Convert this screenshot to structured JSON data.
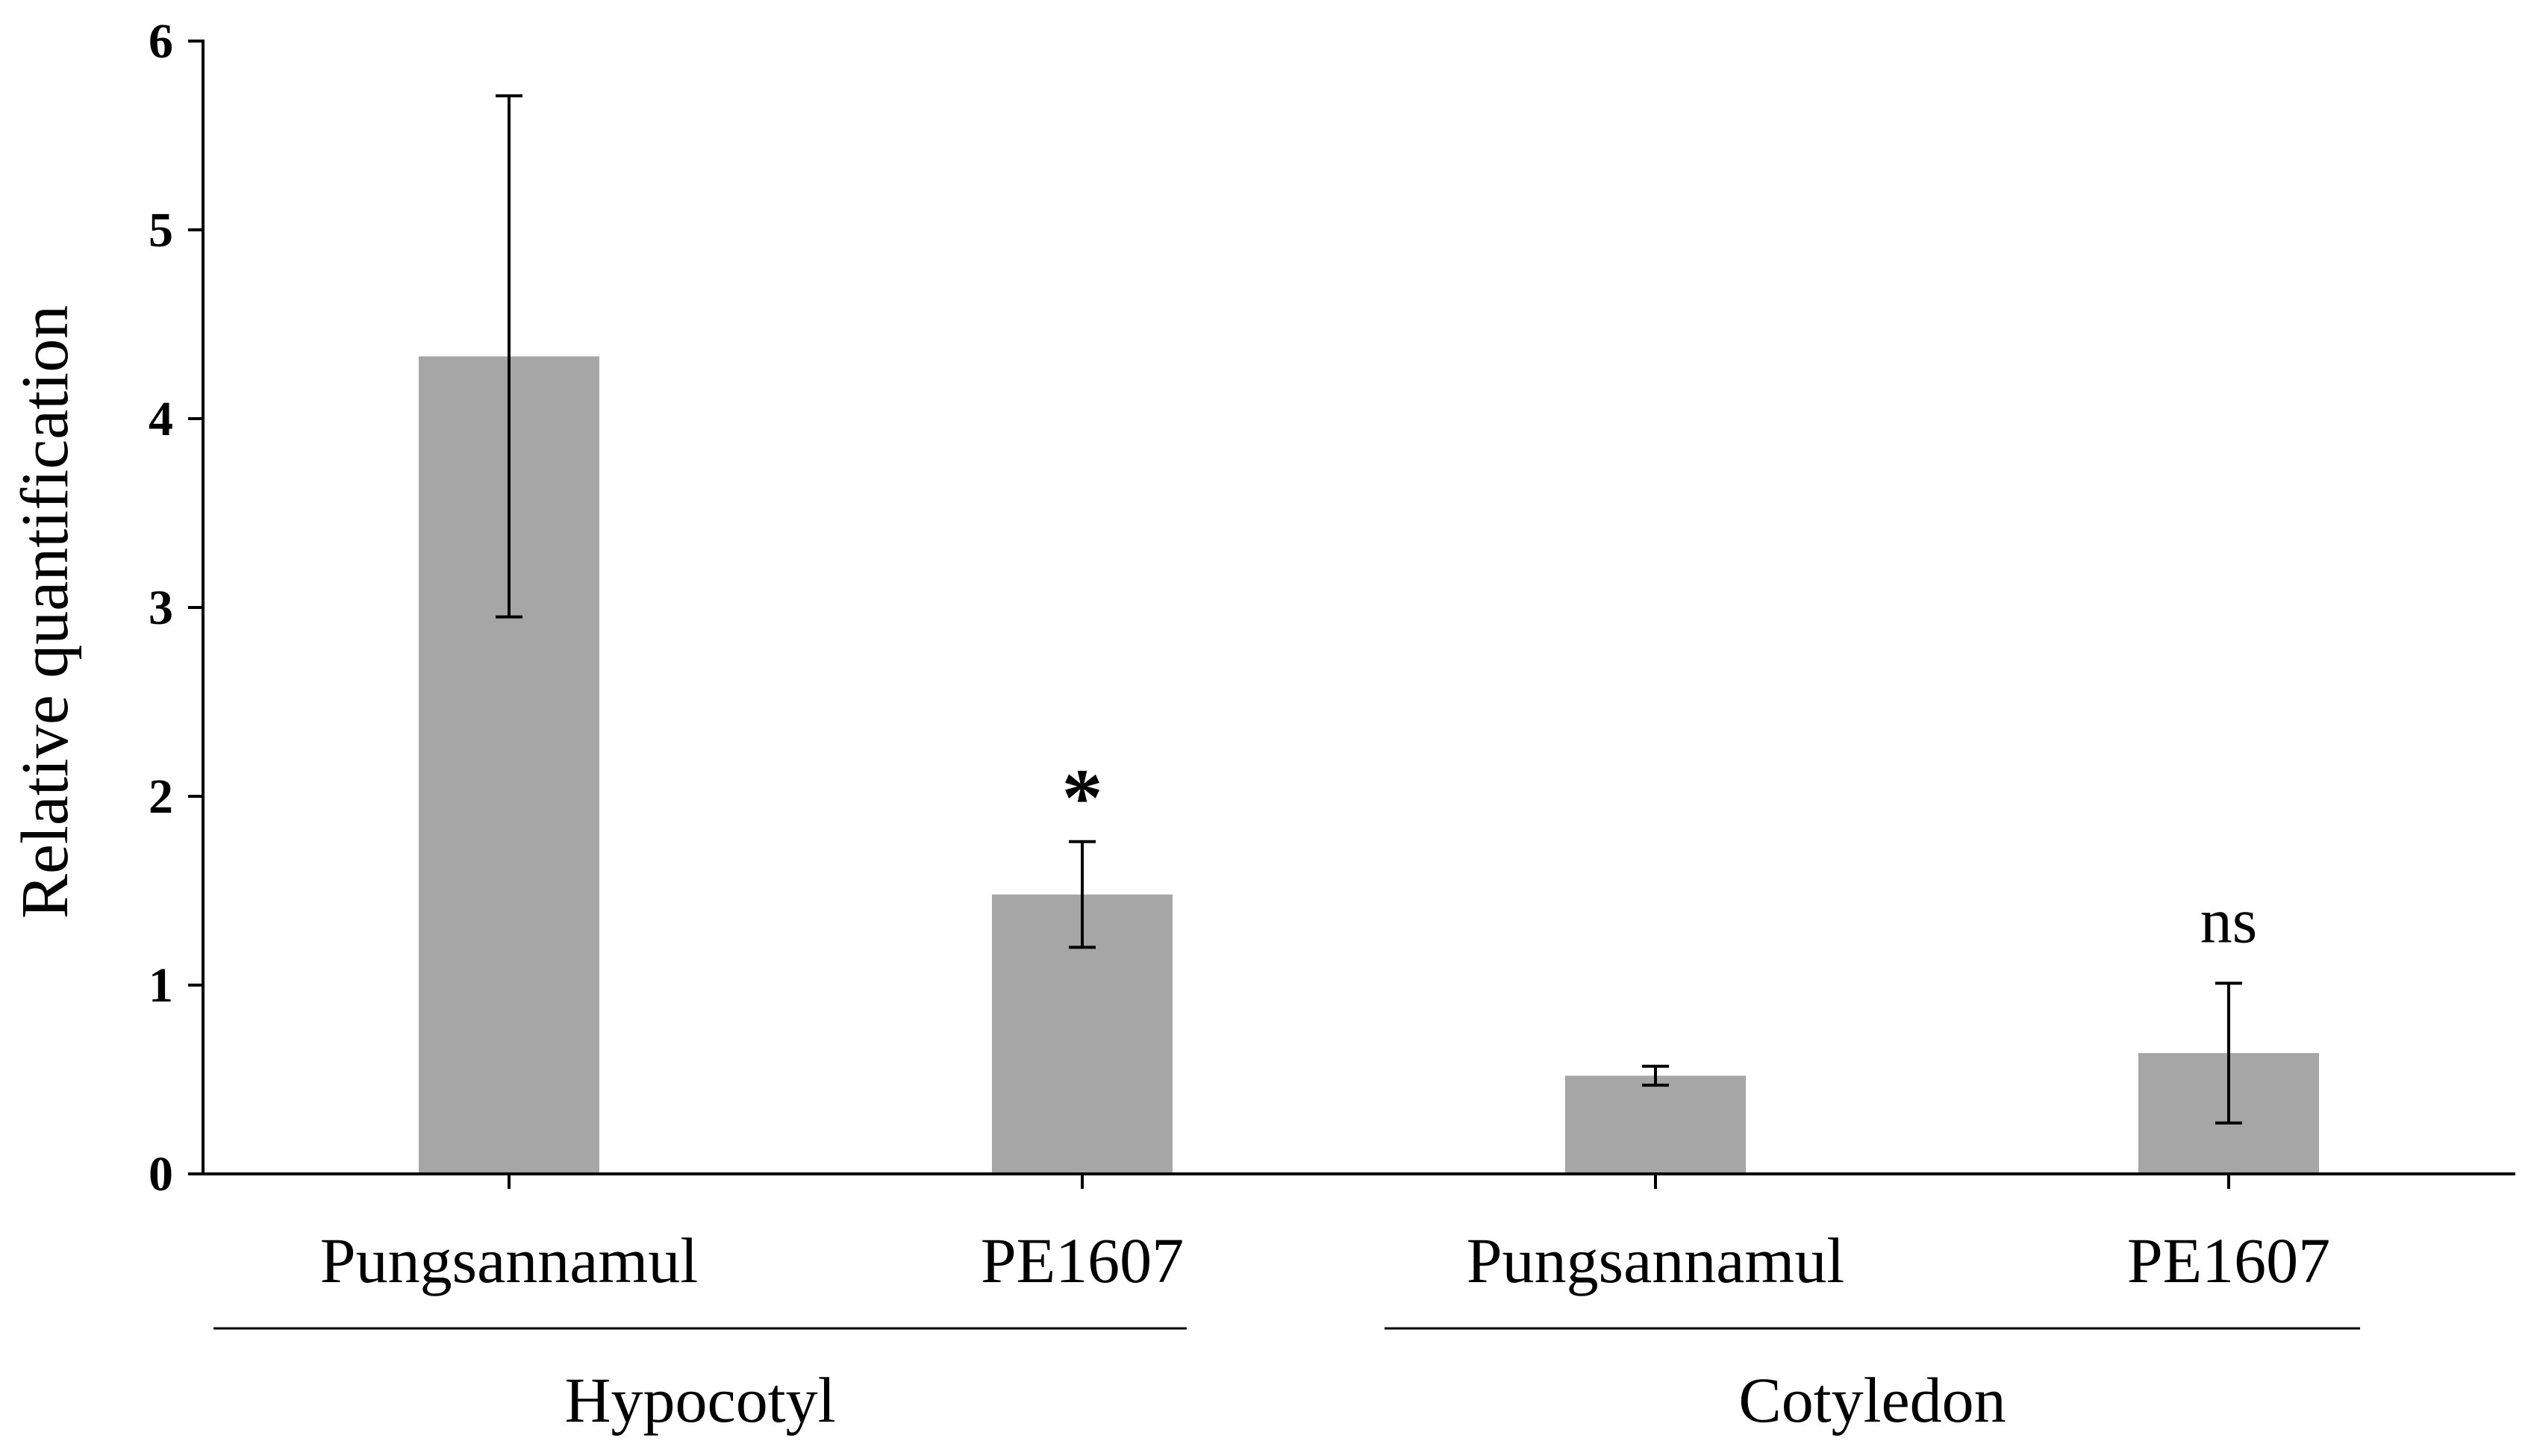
{
  "chart_data": {
    "type": "bar",
    "title": "",
    "xlabel": "",
    "ylabel": "Relative quantification",
    "ylim": [
      0,
      6
    ],
    "yticks": [
      "0",
      "1",
      "2",
      "3",
      "4",
      "5",
      "6"
    ],
    "categories": [
      "Pungsannamul",
      "PE1607",
      "Pungsannamul",
      "PE1607"
    ],
    "groups": [
      {
        "label": "Hypocotyl",
        "members": [
          0,
          1
        ]
      },
      {
        "label": "Cotyledon",
        "members": [
          2,
          3
        ]
      }
    ],
    "values": [
      4.33,
      1.48,
      0.52,
      0.64
    ],
    "errors": [
      1.38,
      0.28,
      0.05,
      0.37
    ],
    "annotations": [
      "",
      "*",
      "",
      "ns"
    ],
    "bar_color": "#a6a6a6",
    "grid": false
  }
}
